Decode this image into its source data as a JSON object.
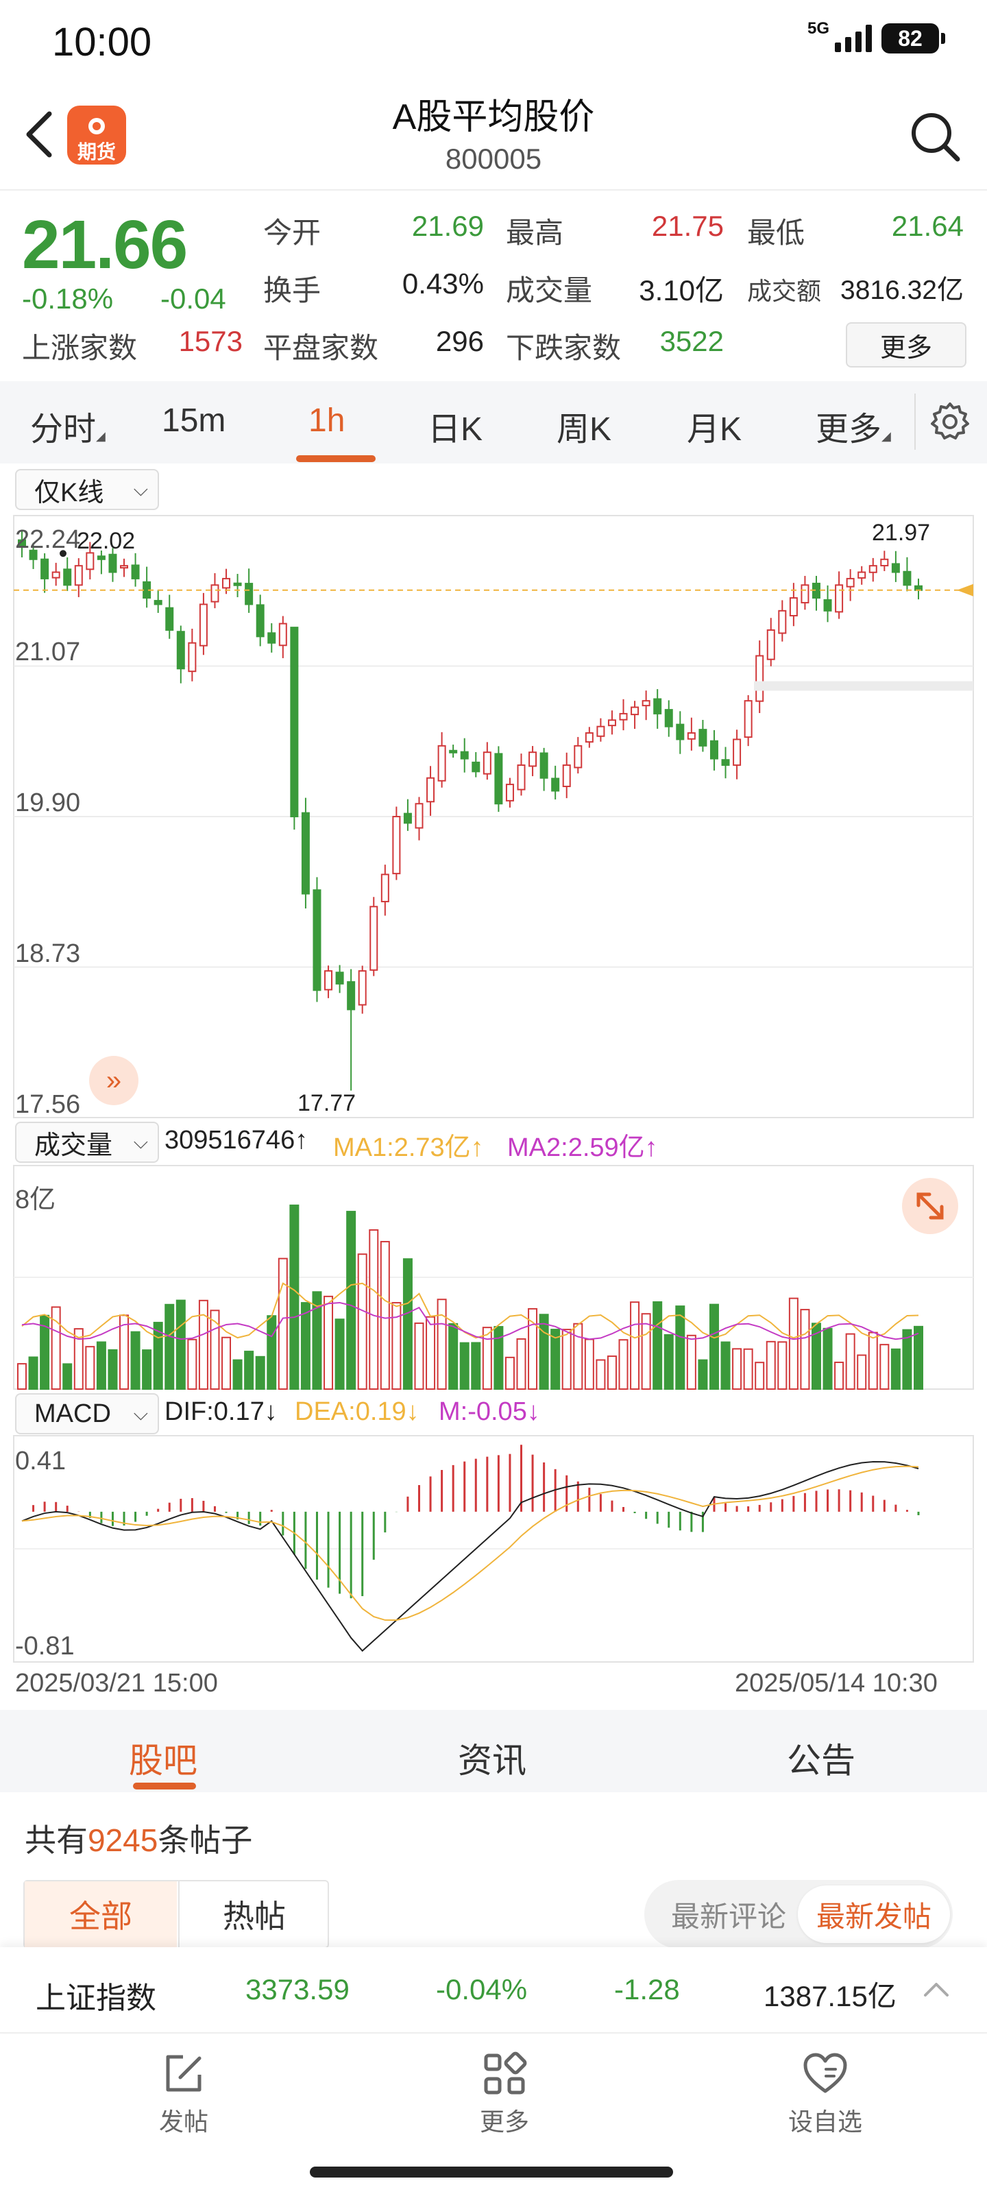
{
  "status_bar": {
    "time": "10:00",
    "network": "5G",
    "battery": "82"
  },
  "header": {
    "logo_text": "期货",
    "title": "A股平均股价",
    "code": "800005"
  },
  "quote": {
    "price": "21.66",
    "change_pct": "-0.18%",
    "change": "-0.04",
    "open_label": "今开",
    "open": "21.69",
    "high_label": "最高",
    "high": "21.75",
    "low_label": "最低",
    "low": "21.64",
    "turnover_rate_label": "换手",
    "turnover_rate": "0.43%",
    "volume_label": "成交量",
    "volume": "3.10亿",
    "amount_label": "成交额",
    "amount": "3816.32亿",
    "up_count_label": "上涨家数",
    "up_count": "1573",
    "flat_count_label": "平盘家数",
    "flat_count": "296",
    "down_count_label": "下跌家数",
    "down_count": "3522",
    "more_label": "更多"
  },
  "period_tabs": [
    {
      "label": "分时"
    },
    {
      "label": "15m"
    },
    {
      "label": "1h",
      "active": true
    },
    {
      "label": "日K"
    },
    {
      "label": "周K"
    },
    {
      "label": "月K"
    },
    {
      "label": "更多"
    }
  ],
  "chart": {
    "kline_selector": "仅K线",
    "y_ticks": [
      "22.24",
      "21.07",
      "19.90",
      "18.73",
      "17.56"
    ],
    "max_label": "22.02",
    "recent_high_label": "21.97",
    "min_label": "17.77",
    "volume_selector": "成交量",
    "volume_value": "309516746↑",
    "ma1": "MA1:2.73亿↑",
    "ma2": "MA2:2.59亿↑",
    "volume_axis": "8亿",
    "macd_selector": "MACD",
    "dif": "DIF:0.17↓",
    "dea": "DEA:0.19↓",
    "m": "M:-0.05↓",
    "macd_top": "0.41",
    "macd_bottom": "-0.81",
    "date_start": "2025/03/21 15:00",
    "date_end": "2025/05/14 10:30",
    "colors": {
      "up": "#d1383a",
      "down": "#3b9a3b",
      "ma1": "#f0b43c",
      "ma2": "#c43bc4",
      "price_line": "#f0b43c"
    }
  },
  "chart_data": {
    "type": "candlestick",
    "title": "",
    "y_range": [
      17.56,
      22.24
    ],
    "x_range": [
      "2025/03/21 15:00",
      "2025/05/14 10:30"
    ],
    "high": 22.02,
    "low": 17.77,
    "last": 21.66,
    "recent_high": 21.97,
    "close_path": [
      22.0,
      21.9,
      21.75,
      21.8,
      21.7,
      21.85,
      21.95,
      21.9,
      21.8,
      21.85,
      21.75,
      21.6,
      21.55,
      21.35,
      21.05,
      21.25,
      21.55,
      21.7,
      21.75,
      21.7,
      21.55,
      21.3,
      21.25,
      21.4,
      19.9,
      19.3,
      18.55,
      18.7,
      18.6,
      18.4,
      18.7,
      19.2,
      19.45,
      19.9,
      19.85,
      20.0,
      20.2,
      20.45,
      20.4,
      20.35,
      20.25,
      20.4,
      20.0,
      20.15,
      20.3,
      20.4,
      20.2,
      20.1,
      20.3,
      20.45,
      20.55,
      20.6,
      20.65,
      20.7,
      20.75,
      20.8,
      20.7,
      20.6,
      20.5,
      20.55,
      20.45,
      20.35,
      20.3,
      20.5,
      20.8,
      21.15,
      21.35,
      21.5,
      21.6,
      21.7,
      21.6,
      21.5,
      21.7,
      21.75,
      21.8,
      21.85,
      21.9,
      21.8,
      21.7,
      21.66
    ],
    "volume_axis_max": 800000000,
    "macd_range": [
      -0.81,
      0.41
    ]
  },
  "info_tabs": [
    {
      "label": "股吧",
      "active": true
    },
    {
      "label": "资讯"
    },
    {
      "label": "公告"
    }
  ],
  "posts": {
    "prefix": "共有",
    "count": "9245",
    "suffix": "条帖子"
  },
  "filters": {
    "all": "全部",
    "hot": "热帖",
    "latest_comment": "最新评论",
    "latest_post": "最新发帖"
  },
  "index_bar": {
    "name": "上证指数",
    "value": "3373.59",
    "pct": "-0.04%",
    "change": "-1.28",
    "amount": "1387.15亿"
  },
  "bottom_nav": {
    "post": "发帖",
    "more": "更多",
    "watch": "设自选"
  }
}
